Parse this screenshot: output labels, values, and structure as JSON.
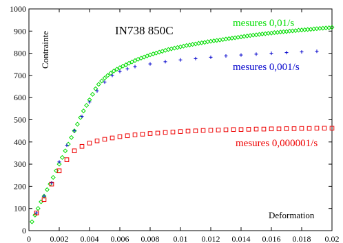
{
  "chart_data": {
    "type": "scatter",
    "title": "IN738 850C",
    "xlabel": "Deformation",
    "ylabel": "Contrainte",
    "xlim": [
      0,
      0.02
    ],
    "ylim": [
      0,
      1000
    ],
    "xticks": [
      "0",
      "0.002",
      "0.004",
      "0.006",
      "0.008",
      "0.01",
      "0.012",
      "0.014",
      "0.016",
      "0.018",
      "0.02"
    ],
    "yticks": [
      "0",
      "100",
      "200",
      "300",
      "400",
      "500",
      "600",
      "700",
      "800",
      "900",
      "1000"
    ],
    "grid": false,
    "legend_placement": "inline labels next to each curve",
    "series": [
      {
        "name": "mesures 0,01/s",
        "color": "#00dd00",
        "marker": "diamond",
        "x": [
          0.0002,
          0.0004,
          0.0006,
          0.0008,
          0.001,
          0.0012,
          0.0014,
          0.0016,
          0.0018,
          0.002,
          0.0022,
          0.0024,
          0.0026,
          0.0028,
          0.003,
          0.0032,
          0.0034,
          0.0036,
          0.0038,
          0.004,
          0.0042,
          0.0044,
          0.0046,
          0.0048,
          0.005,
          0.0052,
          0.0054,
          0.0056,
          0.0058,
          0.006,
          0.0062,
          0.0064,
          0.0066,
          0.0068,
          0.007,
          0.0072,
          0.0074,
          0.0076,
          0.0078,
          0.008,
          0.0082,
          0.0084,
          0.0086,
          0.0088,
          0.009,
          0.0092,
          0.0094,
          0.0096,
          0.0098,
          0.01,
          0.0102,
          0.0104,
          0.0106,
          0.0108,
          0.011,
          0.0112,
          0.0114,
          0.0116,
          0.0118,
          0.012,
          0.0122,
          0.0124,
          0.0126,
          0.0128,
          0.013,
          0.0132,
          0.0134,
          0.0136,
          0.0138,
          0.014,
          0.0142,
          0.0144,
          0.0146,
          0.0148,
          0.015,
          0.0152,
          0.0154,
          0.0156,
          0.0158,
          0.016,
          0.0162,
          0.0164,
          0.0166,
          0.0168,
          0.017,
          0.0172,
          0.0174,
          0.0176,
          0.0178,
          0.018,
          0.0182,
          0.0184,
          0.0186,
          0.0188,
          0.019,
          0.0192,
          0.0194,
          0.0196,
          0.0198,
          0.02
        ],
        "y": [
          40,
          70,
          100,
          130,
          155,
          185,
          210,
          240,
          270,
          300,
          330,
          360,
          390,
          420,
          450,
          480,
          510,
          540,
          565,
          590,
          615,
          640,
          660,
          675,
          688,
          700,
          710,
          720,
          728,
          735,
          742,
          748,
          755,
          761,
          767,
          773,
          778,
          783,
          788,
          793,
          797,
          801,
          805,
          809,
          813,
          817,
          820,
          823,
          826,
          829,
          832,
          835,
          837,
          840,
          842,
          845,
          847,
          849,
          852,
          854,
          856,
          858,
          860,
          862,
          864,
          866,
          868,
          870,
          872,
          874,
          876,
          878,
          880,
          882,
          883,
          885,
          887,
          888,
          890,
          891,
          893,
          894,
          896,
          897,
          898,
          900,
          901,
          902,
          904,
          905,
          906,
          907,
          908,
          910,
          911,
          912,
          913,
          914,
          915,
          917
        ]
      },
      {
        "name": "mesures 0,001/s",
        "color": "#0000cc",
        "marker": "plus",
        "x": [
          0.0005,
          0.001,
          0.0015,
          0.002,
          0.0025,
          0.003,
          0.0035,
          0.004,
          0.0045,
          0.005,
          0.0055,
          0.006,
          0.0065,
          0.007,
          0.008,
          0.009,
          0.01,
          0.011,
          0.012,
          0.013,
          0.014,
          0.015,
          0.016,
          0.017,
          0.018,
          0.019
        ],
        "y": [
          80,
          155,
          215,
          310,
          385,
          450,
          515,
          580,
          630,
          670,
          700,
          718,
          730,
          740,
          752,
          762,
          770,
          776,
          782,
          788,
          792,
          796,
          800,
          803,
          806,
          809
        ]
      },
      {
        "name": "mesures 0,000001/s",
        "color": "#ee0000",
        "marker": "square",
        "x": [
          0.0005,
          0.001,
          0.0015,
          0.002,
          0.0025,
          0.003,
          0.0035,
          0.004,
          0.0045,
          0.005,
          0.0055,
          0.006,
          0.0065,
          0.007,
          0.0075,
          0.008,
          0.0085,
          0.009,
          0.0095,
          0.01,
          0.0105,
          0.011,
          0.0115,
          0.012,
          0.0125,
          0.013,
          0.0135,
          0.014,
          0.0145,
          0.015,
          0.0155,
          0.016,
          0.0165,
          0.017,
          0.0175,
          0.018,
          0.0185,
          0.019,
          0.0195,
          0.02
        ],
        "y": [
          80,
          140,
          210,
          270,
          320,
          360,
          380,
          395,
          405,
          412,
          418,
          424,
          428,
          432,
          435,
          438,
          440,
          443,
          445,
          447,
          449,
          450,
          452,
          453,
          454,
          455,
          456,
          456,
          457,
          458,
          458,
          459,
          459,
          460,
          460,
          461,
          461,
          462,
          462,
          462
        ]
      }
    ]
  }
}
